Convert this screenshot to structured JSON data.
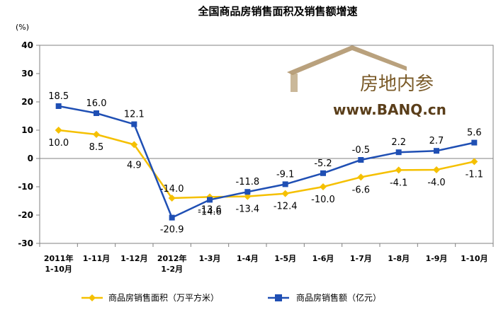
{
  "chart_data": {
    "type": "line",
    "title": "全国商品房销售面积及销售额增速",
    "ylabel": "(%)",
    "ylim": [
      -30,
      40
    ],
    "yticks": [
      40,
      30,
      20,
      10,
      0,
      -10,
      -20,
      -30
    ],
    "grid": false,
    "legend_position": "bottom",
    "categories": [
      [
        "2011年",
        "1-10月"
      ],
      [
        "1-11月"
      ],
      [
        "1-12月"
      ],
      [
        "2012年",
        "1-2月"
      ],
      [
        "1-3月"
      ],
      [
        "1-4月"
      ],
      [
        "1-5月"
      ],
      [
        "1-6月"
      ],
      [
        "1-7月"
      ],
      [
        "1-8月"
      ],
      [
        "1-9月"
      ],
      [
        "1-10月"
      ]
    ],
    "series": [
      {
        "name": "商品房销售面积（万平方米）",
        "color": "#f5c000",
        "marker": "diamond",
        "values": [
          10.0,
          8.5,
          4.9,
          -14.0,
          -13.6,
          -13.4,
          -12.4,
          -10.0,
          -6.6,
          -4.1,
          -4.0,
          -1.1
        ],
        "labels": [
          "10.0",
          "8.5",
          "4.9",
          "-14.0",
          "-13.6",
          "-13.4",
          "-12.4",
          "-10.0",
          "-6.6",
          "-4.1",
          "-4.0",
          "-1.1"
        ]
      },
      {
        "name": "商品房销售额（亿元）",
        "color": "#1f4fb4",
        "marker": "square",
        "values": [
          18.5,
          16.0,
          12.1,
          -20.9,
          -14.6,
          -11.8,
          -9.1,
          -5.2,
          -0.5,
          2.2,
          2.7,
          5.6
        ],
        "labels": [
          "18.5",
          "16.0",
          "12.1",
          "-20.9",
          "-14.6",
          "-11.8",
          "-9.1",
          "-5.2",
          "-0.5",
          "2.2",
          "2.7",
          "5.6"
        ]
      }
    ]
  },
  "watermark": {
    "name": "房地内参",
    "url": "www.BANQ.cn"
  }
}
